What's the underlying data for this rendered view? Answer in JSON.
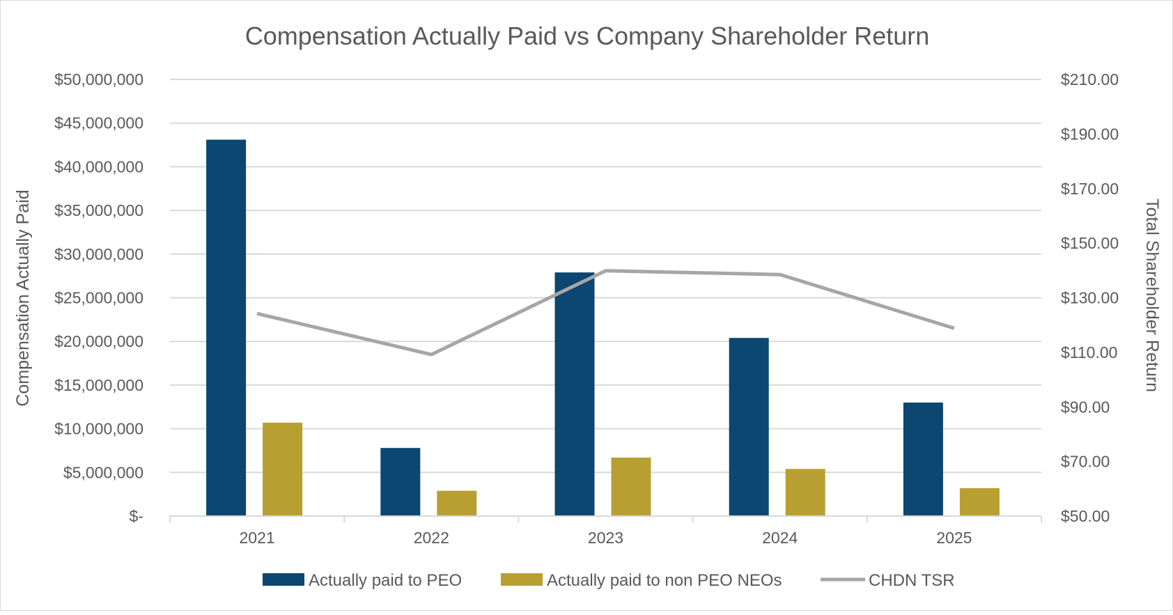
{
  "chart_data": {
    "type": "bar",
    "title": "Compensation Actually Paid vs Company Shareholder Return",
    "ylabel": "Compensation Actually Paid",
    "y2label": "Total Shareholder Return",
    "categories": [
      "2021",
      "2022",
      "2023",
      "2024",
      "2025"
    ],
    "ylim": [
      0,
      50000000
    ],
    "y2lim": [
      50,
      210
    ],
    "yticks": [
      0,
      5000000,
      10000000,
      15000000,
      20000000,
      25000000,
      30000000,
      35000000,
      40000000,
      45000000,
      50000000
    ],
    "ytick_labels": [
      "$-",
      "$5,000,000",
      "$10,000,000",
      "$15,000,000",
      "$20,000,000",
      "$25,000,000",
      "$30,000,000",
      "$35,000,000",
      "$40,000,000",
      "$45,000,000",
      "$50,000,000"
    ],
    "y2ticks": [
      50,
      70,
      90,
      110,
      130,
      150,
      170,
      190,
      210
    ],
    "y2tick_labels": [
      "$50.00",
      "$70.00",
      "$90.00",
      "$110.00",
      "$130.00",
      "$150.00",
      "$170.00",
      "$190.00",
      "$210.00"
    ],
    "grid": true,
    "legend_position": "bottom",
    "series": [
      {
        "name": "Actually paid to PEO",
        "type": "bar",
        "axis": "left",
        "color": "#0b4770",
        "values": [
          43100000,
          7800000,
          27900000,
          20400000,
          13000000
        ]
      },
      {
        "name": "Actually paid to non PEO NEOs",
        "type": "bar",
        "axis": "left",
        "color": "#b89f32",
        "values": [
          10700000,
          2900000,
          6700000,
          5400000,
          3200000
        ]
      },
      {
        "name": "CHDN TSR",
        "type": "line",
        "axis": "right",
        "color": "#a6a6a6",
        "values": [
          124.2,
          109.2,
          139.9,
          138.5,
          118.8
        ]
      }
    ]
  }
}
